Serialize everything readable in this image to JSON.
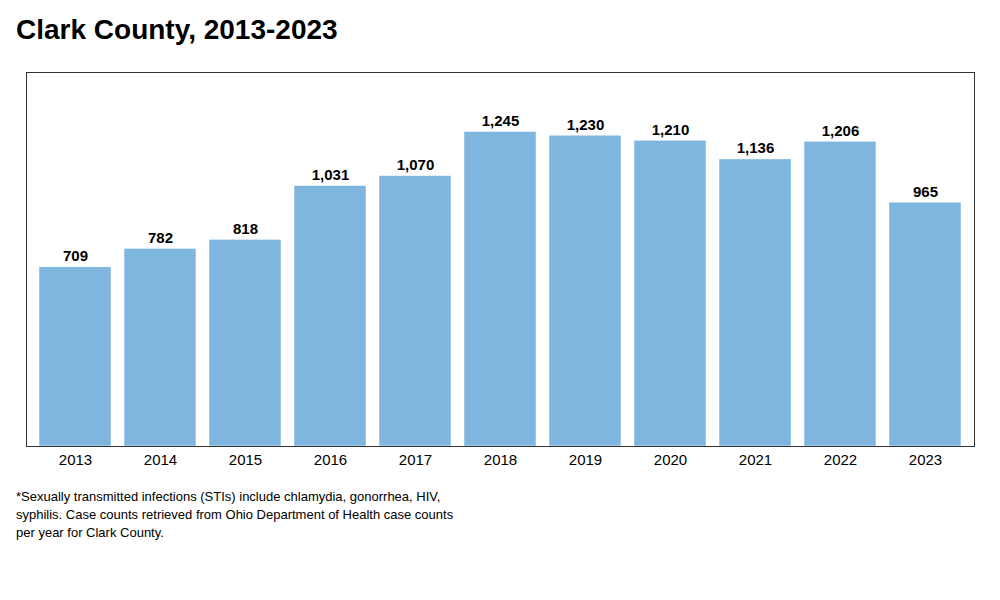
{
  "chart_data": {
    "type": "bar",
    "title": "Clark County, 2013-2023",
    "categories": [
      "2013",
      "2014",
      "2015",
      "2016",
      "2017",
      "2018",
      "2019",
      "2020",
      "2021",
      "2022",
      "2023"
    ],
    "values": [
      709,
      782,
      818,
      1031,
      1070,
      1245,
      1230,
      1210,
      1136,
      1206,
      965
    ],
    "value_labels": [
      "709",
      "782",
      "818",
      "1,031",
      "1,070",
      "1,245",
      "1,230",
      "1,210",
      "1,136",
      "1,206",
      "965"
    ],
    "color": "#7EB6E0",
    "ylim": [
      0,
      1480
    ],
    "data_labels": true,
    "tick_labels": "x",
    "grid": false,
    "annotations": [
      "*Sexually transmitted infections (STIs) include chlamydia, gonorrhea, HIV,",
      "syphilis. Case counts retrieved from Ohio Department of Health case counts",
      "per year for Clark County."
    ]
  }
}
